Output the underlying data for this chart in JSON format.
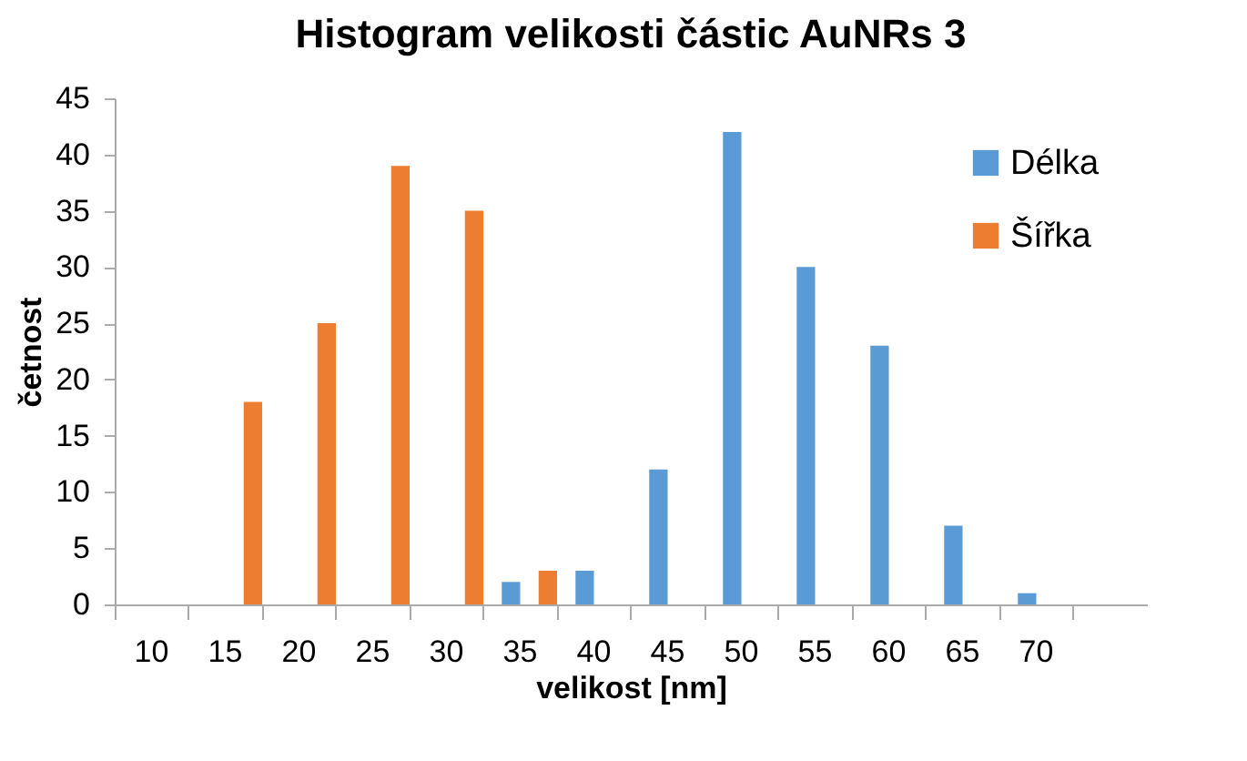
{
  "chart_data": {
    "type": "bar",
    "title": "Histogram velikosti částic AuNRs 3",
    "xlabel": "velikost [nm]",
    "ylabel": "četnost",
    "categories": [
      "10",
      "15",
      "20",
      "25",
      "30",
      "35",
      "40",
      "45",
      "50",
      "55",
      "60",
      "65",
      "70",
      null
    ],
    "series": [
      {
        "name": "Délka",
        "color": "#5b9bd5",
        "values": [
          0,
          0,
          0,
          0,
          0,
          2,
          3,
          12,
          42,
          30,
          23,
          7,
          1,
          0
        ]
      },
      {
        "name": "Šířka",
        "color": "#ed7d31",
        "values": [
          0,
          18,
          25,
          39,
          35,
          3,
          0,
          0,
          0,
          0,
          0,
          0,
          0,
          0
        ]
      }
    ],
    "ylim": [
      0,
      45
    ],
    "yticks": [
      0,
      5,
      10,
      15,
      20,
      25,
      30,
      35,
      40,
      45
    ],
    "grid": false,
    "legend": "top right"
  }
}
